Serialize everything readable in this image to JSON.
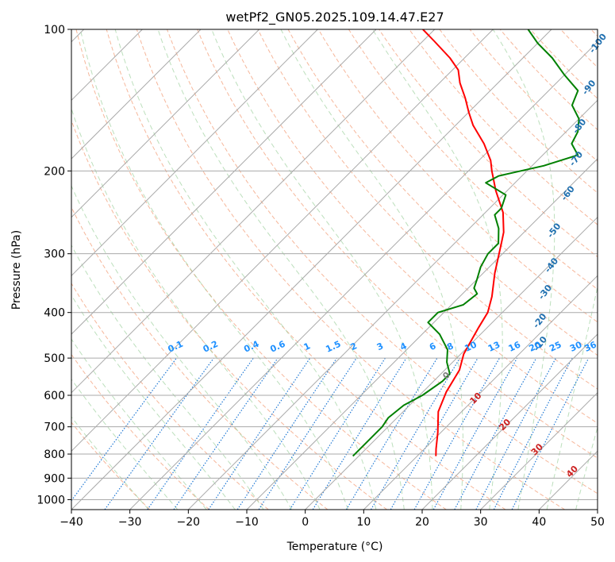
{
  "chart_data": {
    "type": "line",
    "subtype": "skew-t log-p",
    "title": "wetPf2_GN05.2025.109.14.47.E27",
    "xlabel": "Temperature (°C)",
    "ylabel": "Pressure (hPa)",
    "xlim": [
      -40,
      50
    ],
    "ylim": [
      1050,
      100
    ],
    "y_scale": "log",
    "x_ticks": [
      -40,
      -30,
      -20,
      -10,
      0,
      10,
      20,
      30,
      40,
      50
    ],
    "y_ticks": [
      100,
      200,
      300,
      400,
      500,
      600,
      700,
      800,
      900,
      1000
    ],
    "grid": true,
    "skew_isotherms": [
      -120,
      -110,
      -100,
      -90,
      -80,
      -70,
      -60,
      -50,
      -40,
      -30,
      -20,
      -10,
      0,
      10,
      20,
      30,
      40,
      50
    ],
    "series": [
      {
        "color": "#ff0000",
        "points": [
          {
            "t": 13.2,
            "p": 808
          },
          {
            "t": 12.0,
            "p": 780
          },
          {
            "t": 9.5,
            "p": 720
          },
          {
            "t": 6.0,
            "p": 650
          },
          {
            "t": 4.0,
            "p": 590
          },
          {
            "t": 2.5,
            "p": 530
          },
          {
            "t": 0.5,
            "p": 490
          },
          {
            "t": -1.5,
            "p": 430
          },
          {
            "t": -2.5,
            "p": 400
          },
          {
            "t": -4.5,
            "p": 370
          },
          {
            "t": -8.0,
            "p": 330
          },
          {
            "t": -12.0,
            "p": 285
          },
          {
            "t": -13.5,
            "p": 270
          },
          {
            "t": -17.0,
            "p": 245
          },
          {
            "t": -22.0,
            "p": 220
          },
          {
            "t": -26.0,
            "p": 200
          },
          {
            "t": -28.0,
            "p": 190
          },
          {
            "t": -32.0,
            "p": 175
          },
          {
            "t": -37.0,
            "p": 160
          },
          {
            "t": -40.0,
            "p": 150
          },
          {
            "t": -43.0,
            "p": 140
          },
          {
            "t": -46.5,
            "p": 130
          },
          {
            "t": -49.0,
            "p": 122
          },
          {
            "t": -52.5,
            "p": 115
          },
          {
            "t": -58.0,
            "p": 106
          },
          {
            "t": -62.0,
            "p": 100
          }
        ]
      },
      {
        "color": "#008000",
        "points": [
          {
            "t": -1.0,
            "p": 808
          },
          {
            "t": -1.0,
            "p": 760
          },
          {
            "t": -1.0,
            "p": 700
          },
          {
            "t": -1.5,
            "p": 670
          },
          {
            "t": -1.0,
            "p": 630
          },
          {
            "t": 0.5,
            "p": 600
          },
          {
            "t": 1.5,
            "p": 560
          },
          {
            "t": 1.5,
            "p": 540
          },
          {
            "t": -1.0,
            "p": 510
          },
          {
            "t": -3.0,
            "p": 480
          },
          {
            "t": -7.0,
            "p": 445
          },
          {
            "t": -11.0,
            "p": 420
          },
          {
            "t": -11.0,
            "p": 400
          },
          {
            "t": -8.0,
            "p": 385
          },
          {
            "t": -7.5,
            "p": 365
          },
          {
            "t": -9.0,
            "p": 355
          },
          {
            "t": -10.0,
            "p": 340
          },
          {
            "t": -11.5,
            "p": 320
          },
          {
            "t": -12.5,
            "p": 300
          },
          {
            "t": -12.5,
            "p": 285
          },
          {
            "t": -15.0,
            "p": 265
          },
          {
            "t": -18.0,
            "p": 248
          },
          {
            "t": -18.0,
            "p": 240
          },
          {
            "t": -19.5,
            "p": 225
          },
          {
            "t": -25.0,
            "p": 212
          },
          {
            "t": -24.0,
            "p": 205
          },
          {
            "t": -18.0,
            "p": 195
          },
          {
            "t": -14.0,
            "p": 185
          },
          {
            "t": -17.0,
            "p": 175
          },
          {
            "t": -18.0,
            "p": 165
          },
          {
            "t": -20.0,
            "p": 155
          },
          {
            "t": -23.5,
            "p": 145
          },
          {
            "t": -25.0,
            "p": 135
          },
          {
            "t": -30.0,
            "p": 125
          },
          {
            "t": -35.0,
            "p": 115
          },
          {
            "t": -40.0,
            "p": 107
          },
          {
            "t": -44.0,
            "p": 100
          }
        ]
      }
    ],
    "annotations": {
      "dry_adiabat_labels": [
        {
          "text": "-100",
          "t": -29.0,
          "p": 108
        },
        {
          "text": "-90",
          "t": -23.0,
          "p": 134
        },
        {
          "text": "-80",
          "t": -18.0,
          "p": 162
        },
        {
          "text": "-70",
          "t": -13.0,
          "p": 190
        },
        {
          "text": "-60",
          "t": -8.5,
          "p": 225
        },
        {
          "text": "-50",
          "t": -4.5,
          "p": 270
        },
        {
          "text": "-40",
          "t": 1.0,
          "p": 320
        },
        {
          "text": "-30",
          "t": 4.5,
          "p": 365
        },
        {
          "text": "-20",
          "t": 8.5,
          "p": 420
        },
        {
          "text": "-10",
          "t": 12.5,
          "p": 470
        }
      ],
      "mixing_ratio_labels": [
        "0.1",
        "0.2",
        "0.4",
        "0.6",
        "1",
        "1.5",
        "2",
        "3",
        "4",
        "6",
        "8",
        "10",
        "13",
        "16",
        "20",
        "25",
        "30",
        "36"
      ],
      "mixing_ratio_x": [
        -22,
        -16,
        -9,
        -4.5,
        0.5,
        5,
        8.5,
        13,
        17,
        22,
        25,
        28.5,
        32.5,
        36,
        39.5,
        43,
        46.5,
        49
      ],
      "mixing_ratio_p": 490,
      "moist_adiabat_labels": [
        {
          "text": "0",
          "t": 24.5,
          "p": 550,
          "color": "#808080"
        },
        {
          "text": "10",
          "t": 29.5,
          "p": 615,
          "color": "#cc2222"
        },
        {
          "text": "20",
          "t": 34.5,
          "p": 700,
          "color": "#cc2222"
        },
        {
          "text": "30",
          "t": 40.0,
          "p": 790,
          "color": "#cc2222"
        },
        {
          "text": "40",
          "t": 46.0,
          "p": 880,
          "color": "#cc2222"
        }
      ]
    }
  }
}
